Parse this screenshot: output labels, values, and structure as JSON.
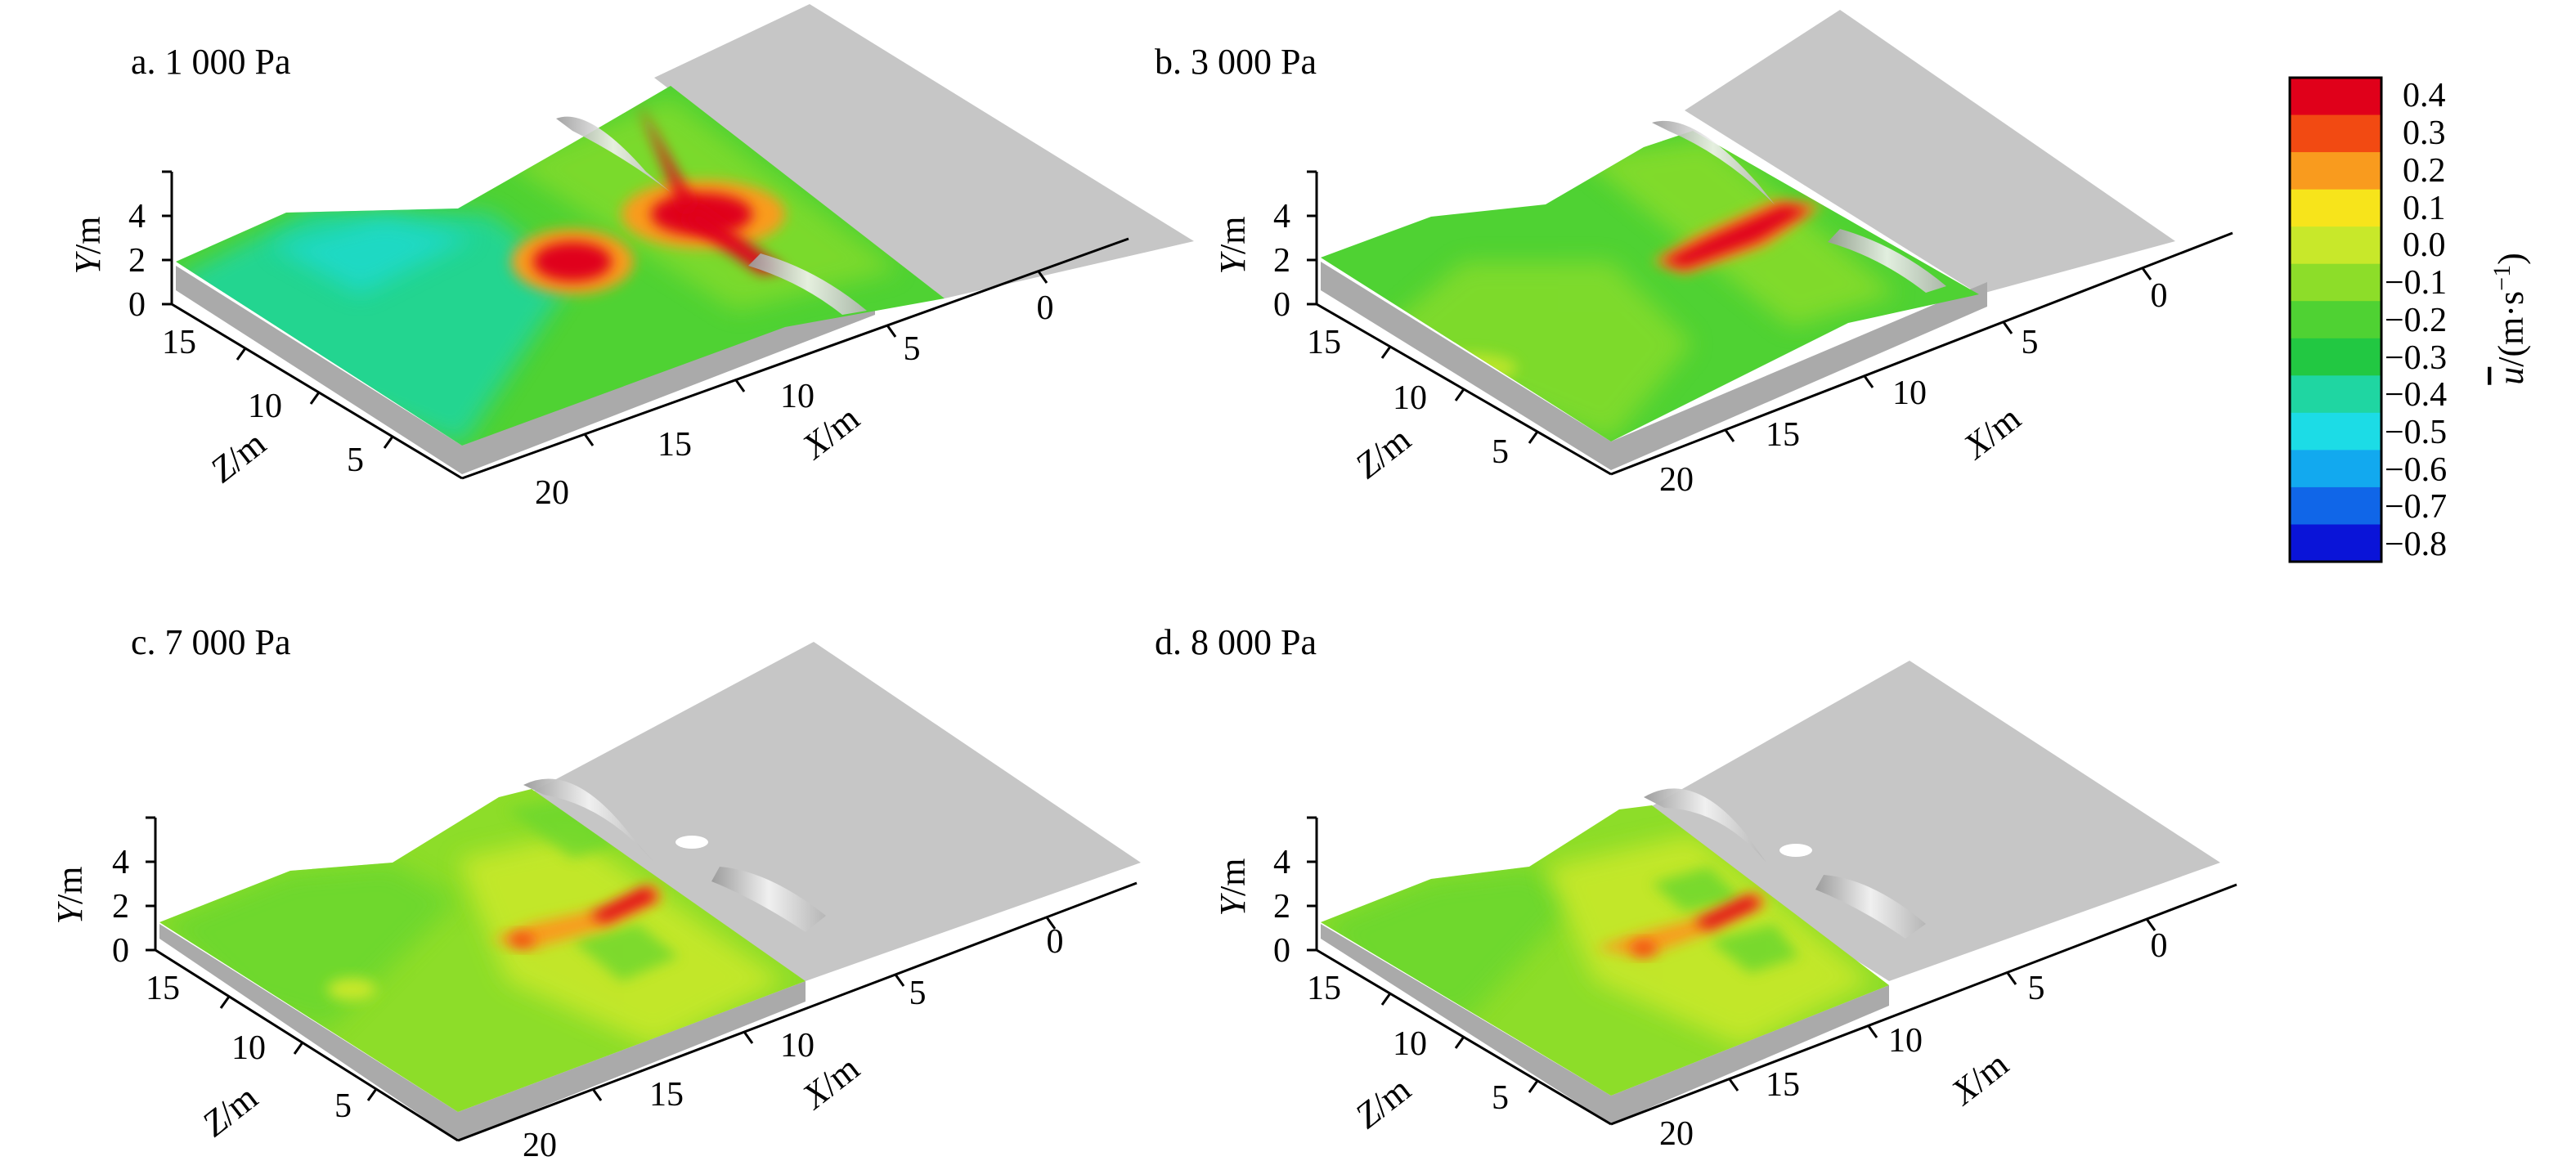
{
  "panels": [
    {
      "id": "a",
      "title": "a. 1 000 Pa"
    },
    {
      "id": "b",
      "title": "b. 3 000 Pa"
    },
    {
      "id": "c",
      "title": "c. 7 000 Pa"
    },
    {
      "id": "d",
      "title": "d. 8 000 Pa"
    }
  ],
  "axes": {
    "y_label_italic": "Y",
    "y_label_unit": "/m",
    "z_label_italic": "Z",
    "z_label_unit": "/m",
    "x_label_italic": "X",
    "x_label_unit": "/m",
    "y_ticks": [
      "0",
      "2",
      "4"
    ],
    "z_ticks": [
      "15",
      "10",
      "5"
    ],
    "x_ticks": [
      "0",
      "5",
      "10",
      "15",
      "20"
    ]
  },
  "colorbar": {
    "levels": [
      "0.4",
      "0.3",
      "0.2",
      "0.1",
      "0.0",
      "−0.1",
      "−0.2",
      "−0.3",
      "−0.4",
      "−0.5",
      "−0.6",
      "−0.7",
      "−0.8"
    ],
    "colors": [
      "#e0001a",
      "#f24a12",
      "#f99b1e",
      "#f7e41b",
      "#c8e82a",
      "#8ddd29",
      "#4fd233",
      "#22c842",
      "#1fd6a2",
      "#1cdce6",
      "#12a9ef",
      "#1066e8",
      "#0a14d8"
    ],
    "label_italic": "u",
    "label_rest": "/(m·s",
    "label_sup": "−1",
    "label_close": ")"
  },
  "colors": {
    "gray_surface": "#c6c6c6",
    "gray_side": "#aaaaaa",
    "mound": "#dcdcdc"
  }
}
